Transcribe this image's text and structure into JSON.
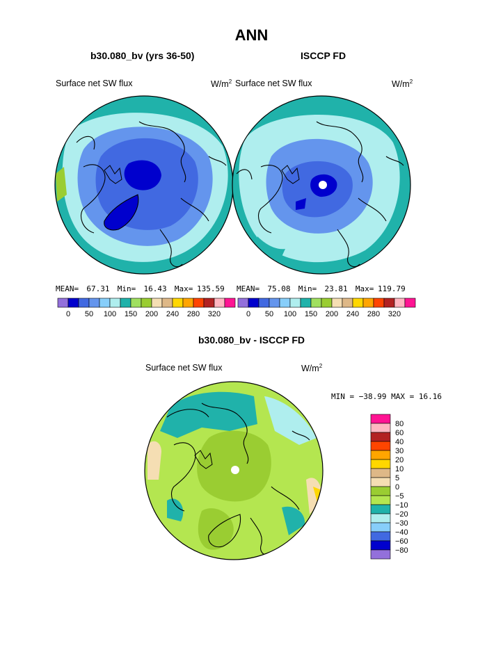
{
  "page_title": "ANN",
  "panels": [
    {
      "case": "b30.080_bv (yrs 36-50)",
      "field": "Surface net SW flux",
      "units_base": "W/m",
      "units_exp": "2",
      "stats": {
        "mean_label": "MEAN=",
        "mean": "67.31",
        "min_label": "Min=",
        "min": "16.43",
        "max_label": "Max=",
        "max": "135.59"
      }
    },
    {
      "case": "ISCCP FD",
      "field": "Surface net SW flux",
      "units_base": "W/m",
      "units_exp": "2",
      "stats": {
        "mean_label": "MEAN=",
        "mean": "75.08",
        "min_label": "Min=",
        "min": "23.81",
        "max_label": "Max=",
        "max": "119.79"
      }
    }
  ],
  "diff": {
    "title": "b30.080_bv - ISCCP FD",
    "field": "Surface net SW flux",
    "units_base": "W/m",
    "units_exp": "2",
    "minmax": "MIN = −38.99 MAX =  16.16"
  },
  "abs_colorbar": {
    "colors": [
      "#9370db",
      "#0000cd",
      "#4169e1",
      "#6495ed",
      "#87cefa",
      "#afeeee",
      "#20b2aa",
      "#a0e060",
      "#9acd32",
      "#f5deb3",
      "#deb887",
      "#ffd700",
      "#ffa500",
      "#ff4500",
      "#b22222",
      "#ffb6c1",
      "#ff1493"
    ],
    "labels": [
      "0",
      "50",
      "100",
      "150",
      "200",
      "240",
      "280",
      "320"
    ]
  },
  "diff_colorbar": {
    "colors_top_to_bottom": [
      "#ff1493",
      "#ffb6c1",
      "#b22222",
      "#ff4500",
      "#ffa500",
      "#ffd700",
      "#deb887",
      "#f5deb3",
      "#9acd32",
      "#b4e650",
      "#20b2aa",
      "#afeeee",
      "#87cefa",
      "#4169e1",
      "#0000cd",
      "#9370db"
    ],
    "labels": [
      "80",
      "60",
      "40",
      "30",
      "20",
      "10",
      "5",
      "0",
      "−5",
      "−10",
      "−20",
      "−30",
      "−40",
      "−60",
      "−80"
    ]
  }
}
